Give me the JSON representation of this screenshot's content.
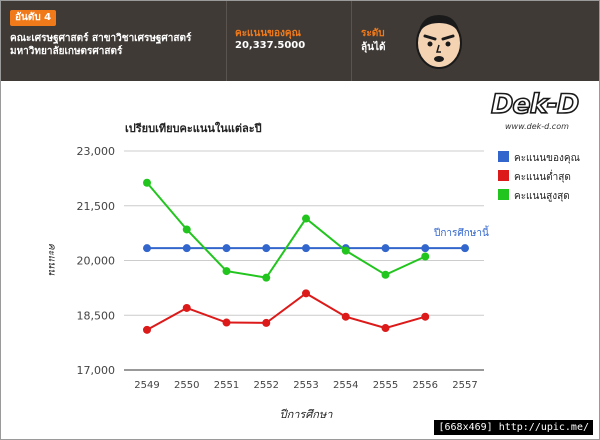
{
  "header": {
    "rank_badge": "อันดับ 4",
    "faculty_line_1": "คณะเศรษฐศาสตร์ สาขาวิชาเศรษฐศาสตร์",
    "faculty_line_2": "มหาวิทยาลัยเกษตรศาสตร์",
    "score_label": "คะแนนของคุณ",
    "score_value": "20,337.5000",
    "level_label": "ระดับ",
    "level_value": "ลุ้นได้"
  },
  "logo": {
    "text": "Dek-D",
    "url": "www.dek-d.com"
  },
  "watermark": "[668x469] http://upic.me/",
  "colors": {
    "header_bg": "#3f3a36",
    "accent": "#f07a1a",
    "series_yours": "#3366cc",
    "series_min": "#dc1a1a",
    "series_max": "#22c51e"
  },
  "chart_data": {
    "type": "line",
    "title": "เปรียบเทียบคะแนนในแต่ละปี",
    "xlabel": "ปีการศึกษา",
    "ylabel": "คะแนน",
    "categories": [
      "2549",
      "2550",
      "2551",
      "2552",
      "2553",
      "2554",
      "2555",
      "2556",
      "2557"
    ],
    "ylim": [
      17000,
      23000
    ],
    "yticks": [
      "17,000",
      "18,500",
      "20,000",
      "21,500",
      "23,000"
    ],
    "ytick_values": [
      17000,
      18500,
      20000,
      21500,
      23000
    ],
    "grid": true,
    "legend_position": "right",
    "series": [
      {
        "name": "คะแนนของคุณ",
        "color": "#3366cc",
        "values": [
          20337.5,
          20337.5,
          20337.5,
          20337.5,
          20337.5,
          20337.5,
          20337.5,
          20337.5,
          20337.5
        ]
      },
      {
        "name": "คะแนนต่ำสุด",
        "color": "#dc1a1a",
        "values": [
          18100,
          18700,
          18300,
          18290,
          19100,
          18460,
          18150,
          18460,
          null
        ]
      },
      {
        "name": "คะแนนสูงสุด",
        "color": "#22c51e",
        "values": [
          22130,
          20850,
          19710,
          19530,
          21150,
          20270,
          19610,
          20110,
          null
        ]
      }
    ],
    "annotation": {
      "text": "ปีการศึกษานี้",
      "series": 0,
      "category": "2557"
    }
  }
}
